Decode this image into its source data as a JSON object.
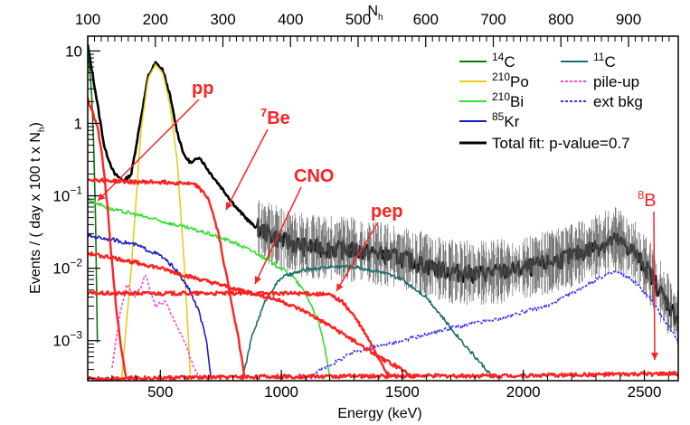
{
  "chart_data": {
    "type": "line",
    "xlabel": "Energy (keV)",
    "ylabel": "Events / ( day x 100 t x N",
    "ylabel_sub": "h",
    "ylabel_close": ")",
    "top_axis_label": "N",
    "top_axis_label_sub": "h",
    "x_ticks": [
      500,
      1000,
      1500,
      2000,
      2500
    ],
    "x_tick_labels": [
      "500",
      "1000",
      "1500",
      "2000",
      "2500"
    ],
    "top_ticks": [
      100,
      200,
      300,
      400,
      500,
      600,
      700,
      800,
      900
    ],
    "top_tick_labels": [
      "100",
      "200",
      "300",
      "400",
      "500",
      "600",
      "700",
      "800",
      "900"
    ],
    "y_scale": "log",
    "xlim": [
      200,
      2640
    ],
    "ylim": [
      0.00028,
      16
    ],
    "y_tick_labels": [
      {
        "value": 10,
        "base": "10",
        "exp": ""
      },
      {
        "value": 1,
        "base": "1",
        "exp": ""
      },
      {
        "value": 0.1,
        "base": "10",
        "exp": "−1"
      },
      {
        "value": 0.01,
        "base": "10",
        "exp": "−2"
      },
      {
        "value": 0.001,
        "base": "10",
        "exp": "−3"
      }
    ],
    "legend": {
      "left": [
        {
          "sup": "14",
          "text": "C",
          "color": "#0a7a0a",
          "dash": false
        },
        {
          "sup": "210",
          "text": "Po",
          "color": "#e8cc1a",
          "dash": false
        },
        {
          "sup": "210",
          "text": "Bi",
          "color": "#33dd33",
          "dash": false
        },
        {
          "sup": "85",
          "text": "Kr",
          "color": "#1a1acc",
          "dash": false
        }
      ],
      "right": [
        {
          "sup": "11",
          "text": "C",
          "color": "#1a6b6b",
          "dash": false
        },
        {
          "sup": "",
          "text": "pile-up",
          "color": "#ff44dd",
          "dash": true
        },
        {
          "sup": "",
          "text": "ext bkg",
          "color": "#3333ff",
          "dash": true
        }
      ],
      "total": {
        "text": "Total fit: p-value=0.7",
        "color": "#000000"
      }
    },
    "annotations": [
      {
        "text": "pp",
        "sup": "",
        "x": 1.0,
        "color": "#ff2222"
      },
      {
        "text": "Be",
        "sup": "7",
        "x": 1.0,
        "color": "#ff2222"
      },
      {
        "text": "CNO",
        "sup": "",
        "x": 1.0,
        "color": "#ff2222"
      },
      {
        "text": "pep",
        "sup": "",
        "x": 1.0,
        "color": "#ff2222"
      },
      {
        "text": "B",
        "sup": "8",
        "x": 1.0,
        "color": "#ff2222"
      }
    ],
    "series": [
      {
        "name": "Total fit: p-value=0.7",
        "color": "#000000",
        "points": [
          [
            200,
            12
          ],
          [
            230,
            3
          ],
          [
            270,
            0.45
          ],
          [
            310,
            0.2
          ],
          [
            350,
            0.16
          ],
          [
            380,
            0.2
          ],
          [
            420,
            1.2
          ],
          [
            450,
            4.5
          ],
          [
            480,
            6.8
          ],
          [
            510,
            5.5
          ],
          [
            540,
            2.4
          ],
          [
            570,
            0.75
          ],
          [
            600,
            0.35
          ],
          [
            630,
            0.28
          ],
          [
            660,
            0.35
          ],
          [
            700,
            0.22
          ],
          [
            760,
            0.12
          ],
          [
            820,
            0.065
          ],
          [
            880,
            0.04
          ],
          [
            950,
            0.03
          ],
          [
            1000,
            0.025
          ],
          [
            1100,
            0.02
          ],
          [
            1200,
            0.019
          ],
          [
            1300,
            0.018
          ],
          [
            1400,
            0.016
          ],
          [
            1500,
            0.014
          ],
          [
            1600,
            0.011
          ],
          [
            1700,
            0.009
          ],
          [
            1800,
            0.0085
          ],
          [
            1900,
            0.009
          ],
          [
            2000,
            0.01
          ],
          [
            2100,
            0.012
          ],
          [
            2200,
            0.015
          ],
          [
            2300,
            0.02
          ],
          [
            2380,
            0.025
          ],
          [
            2450,
            0.018
          ],
          [
            2520,
            0.009
          ],
          [
            2580,
            0.004
          ],
          [
            2640,
            0.002
          ]
        ]
      },
      {
        "name": "14C",
        "color": "#0a7a0a",
        "points": [
          [
            200,
            11
          ],
          [
            215,
            3
          ],
          [
            225,
            0.5
          ],
          [
            232,
            0.05
          ],
          [
            238,
            0.003
          ],
          [
            242,
            0.0003
          ]
        ]
      },
      {
        "name": "210Po",
        "color": "#e8cc1a",
        "points": [
          [
            340,
            0.0003
          ],
          [
            380,
            0.01
          ],
          [
            420,
            0.8
          ],
          [
            450,
            4.2
          ],
          [
            480,
            6.5
          ],
          [
            510,
            5
          ],
          [
            540,
            1.8
          ],
          [
            570,
            0.3
          ],
          [
            600,
            0.01
          ],
          [
            625,
            0.0003
          ]
        ]
      },
      {
        "name": "210Bi",
        "color": "#33dd33",
        "points": [
          [
            200,
            0.09
          ],
          [
            300,
            0.065
          ],
          [
            400,
            0.055
          ],
          [
            500,
            0.045
          ],
          [
            600,
            0.037
          ],
          [
            700,
            0.03
          ],
          [
            800,
            0.023
          ],
          [
            900,
            0.016
          ],
          [
            1000,
            0.01
          ],
          [
            1050,
            0.0075
          ],
          [
            1100,
            0.0045
          ],
          [
            1150,
            0.002
          ],
          [
            1180,
            0.0008
          ],
          [
            1200,
            0.0003
          ]
        ]
      },
      {
        "name": "85Kr",
        "color": "#1a1acc",
        "points": [
          [
            200,
            0.028
          ],
          [
            300,
            0.025
          ],
          [
            400,
            0.021
          ],
          [
            500,
            0.015
          ],
          [
            560,
            0.01
          ],
          [
            620,
            0.005
          ],
          [
            660,
            0.0025
          ],
          [
            690,
            0.001
          ],
          [
            710,
            0.0003
          ]
        ]
      },
      {
        "name": "11C",
        "color": "#1a6b6b",
        "points": [
          [
            840,
            0.0003
          ],
          [
            880,
            0.0012
          ],
          [
            940,
            0.004
          ],
          [
            1000,
            0.0075
          ],
          [
            1100,
            0.0095
          ],
          [
            1200,
            0.0105
          ],
          [
            1300,
            0.0105
          ],
          [
            1400,
            0.009
          ],
          [
            1500,
            0.007
          ],
          [
            1600,
            0.004
          ],
          [
            1700,
            0.0015
          ],
          [
            1800,
            0.0006
          ],
          [
            1880,
            0.0003
          ]
        ]
      },
      {
        "name": "pile-up",
        "color": "#ff44dd",
        "dash": true,
        "points": [
          [
            300,
            0.0004
          ],
          [
            330,
            0.002
          ],
          [
            360,
            0.006
          ],
          [
            400,
            0.004
          ],
          [
            440,
            0.008
          ],
          [
            480,
            0.003
          ],
          [
            520,
            0.0035
          ],
          [
            560,
            0.0018
          ],
          [
            600,
            0.001
          ],
          [
            630,
            0.0005
          ],
          [
            660,
            0.0003
          ]
        ]
      },
      {
        "name": "ext bkg",
        "color": "#3333ff",
        "dash": true,
        "points": [
          [
            1100,
            0.0003
          ],
          [
            1300,
            0.0007
          ],
          [
            1500,
            0.001
          ],
          [
            1700,
            0.0015
          ],
          [
            1900,
            0.002
          ],
          [
            2000,
            0.0025
          ],
          [
            2100,
            0.003
          ],
          [
            2200,
            0.0045
          ],
          [
            2300,
            0.007
          ],
          [
            2380,
            0.009
          ],
          [
            2450,
            0.007
          ],
          [
            2520,
            0.004
          ],
          [
            2580,
            0.002
          ],
          [
            2640,
            0.001
          ]
        ]
      },
      {
        "name": "pp",
        "color": "#ff2222",
        "points": [
          [
            200,
            2.2
          ],
          [
            240,
            0.9
          ],
          [
            260,
            0.35
          ],
          [
            280,
            0.08
          ],
          [
            300,
            0.012
          ],
          [
            320,
            0.0025
          ],
          [
            340,
            0.0007
          ],
          [
            360,
            0.0003
          ]
        ]
      },
      {
        "name": "7Be",
        "color": "#ff2222",
        "points": [
          [
            200,
            0.17
          ],
          [
            300,
            0.16
          ],
          [
            400,
            0.155
          ],
          [
            500,
            0.155
          ],
          [
            600,
            0.15
          ],
          [
            650,
            0.14
          ],
          [
            700,
            0.09
          ],
          [
            740,
            0.03
          ],
          [
            780,
            0.006
          ],
          [
            820,
            0.0012
          ],
          [
            850,
            0.0003
          ]
        ]
      },
      {
        "name": "CNO",
        "color": "#ff2222",
        "points": [
          [
            200,
            0.016
          ],
          [
            300,
            0.014
          ],
          [
            400,
            0.012
          ],
          [
            500,
            0.01
          ],
          [
            600,
            0.008
          ],
          [
            700,
            0.0065
          ],
          [
            800,
            0.0053
          ],
          [
            900,
            0.0044
          ],
          [
            1000,
            0.0035
          ],
          [
            1100,
            0.0025
          ],
          [
            1200,
            0.0016
          ],
          [
            1300,
            0.001
          ],
          [
            1400,
            0.0006
          ],
          [
            1500,
            0.0004
          ],
          [
            1550,
            0.0003
          ]
        ]
      },
      {
        "name": "pep",
        "color": "#ff2222",
        "points": [
          [
            200,
            0.0045
          ],
          [
            400,
            0.0045
          ],
          [
            600,
            0.0045
          ],
          [
            800,
            0.0045
          ],
          [
            1000,
            0.0045
          ],
          [
            1100,
            0.0045
          ],
          [
            1200,
            0.0043
          ],
          [
            1250,
            0.0035
          ],
          [
            1300,
            0.0022
          ],
          [
            1350,
            0.0012
          ],
          [
            1400,
            0.0006
          ],
          [
            1450,
            0.0003
          ]
        ]
      },
      {
        "name": "8B",
        "color": "#ff2222",
        "points": [
          [
            200,
            0.0003
          ],
          [
            1000,
            0.00032
          ],
          [
            2000,
            0.00033
          ],
          [
            2640,
            0.00035
          ]
        ]
      }
    ]
  }
}
